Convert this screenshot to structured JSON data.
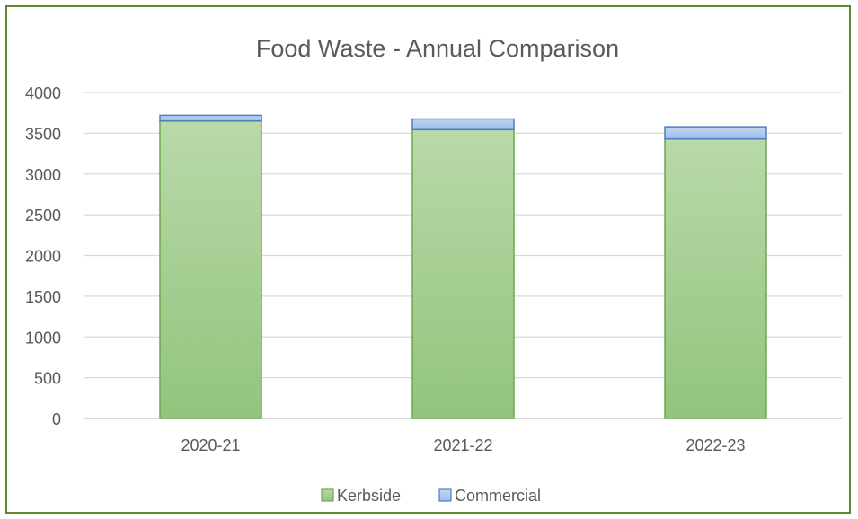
{
  "chart_data": {
    "type": "bar",
    "stacked": true,
    "title": "Food Waste - Annual Comparison",
    "xlabel": "",
    "ylabel": "",
    "categories": [
      "2020-21",
      "2021-22",
      "2022-23"
    ],
    "series": [
      {
        "name": "Kerbside",
        "values": [
          3650,
          3545,
          3430
        ],
        "color": "#9bc888",
        "stroke": "#6aa84f"
      },
      {
        "name": "Commercial",
        "values": [
          70,
          130,
          150
        ],
        "color": "#a9c4e8",
        "stroke": "#4a7fc4"
      }
    ],
    "ylim": [
      0,
      4000
    ],
    "yticks": [
      0,
      500,
      1000,
      1500,
      2000,
      2500,
      3000,
      3500,
      4000
    ],
    "grid": true,
    "legend_position": "bottom"
  },
  "colors": {
    "border": "#5f8a2e",
    "gridline": "#d9d9d9",
    "axis": "#bfbfbf"
  }
}
